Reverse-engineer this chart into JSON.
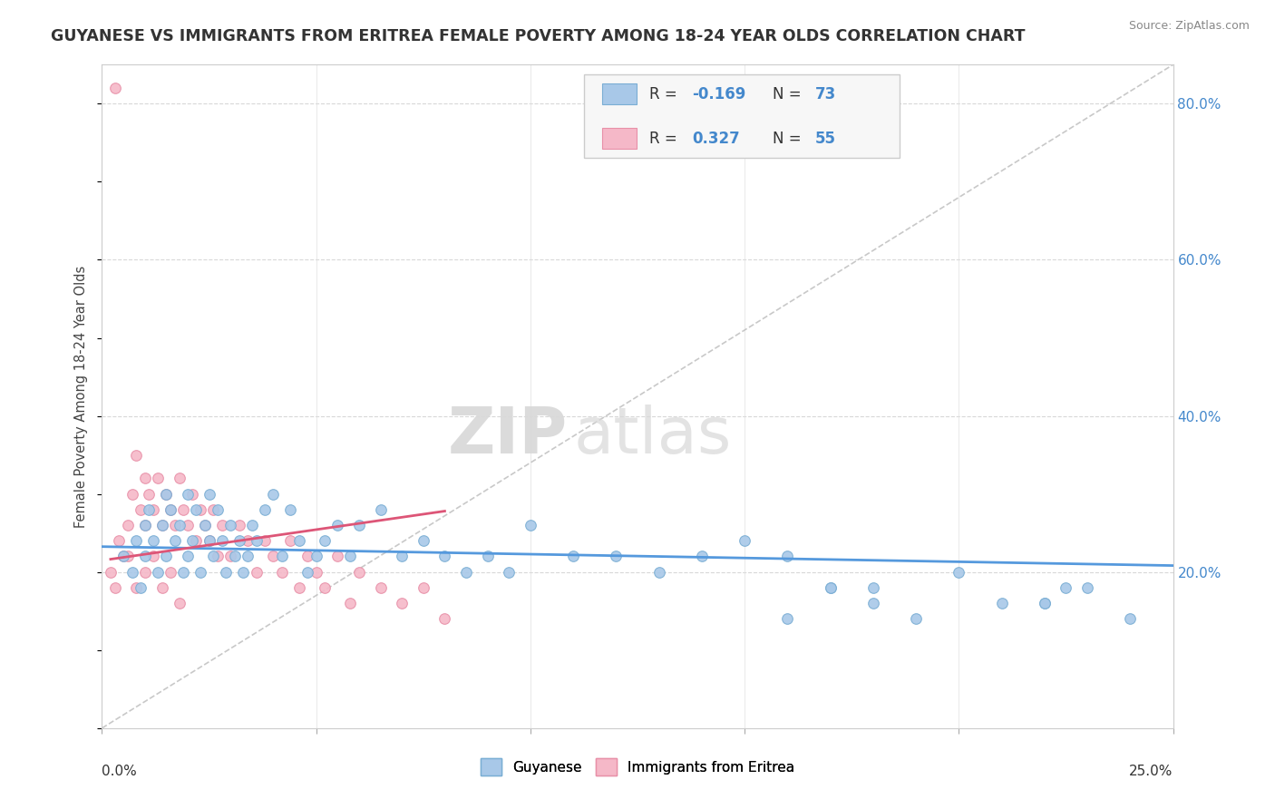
{
  "title": "GUYANESE VS IMMIGRANTS FROM ERITREA FEMALE POVERTY AMONG 18-24 YEAR OLDS CORRELATION CHART",
  "source": "Source: ZipAtlas.com",
  "ylabel": "Female Poverty Among 18-24 Year Olds",
  "xlim": [
    0.0,
    0.25
  ],
  "ylim": [
    0.0,
    0.85
  ],
  "blue_R": -0.169,
  "blue_N": 73,
  "pink_R": 0.327,
  "pink_N": 55,
  "blue_color": "#a8c8e8",
  "pink_color": "#f5b8c8",
  "blue_edge": "#7aaed4",
  "pink_edge": "#e890a8",
  "trend_blue": "#5599dd",
  "trend_pink": "#dd5577",
  "diag_color": "#bbbbbb",
  "legend_label_blue": "Guyanese",
  "legend_label_pink": "Immigrants from Eritrea",
  "watermark_zip": "ZIP",
  "watermark_atlas": "atlas",
  "blue_scatter_x": [
    0.005,
    0.007,
    0.008,
    0.009,
    0.01,
    0.01,
    0.011,
    0.012,
    0.013,
    0.014,
    0.015,
    0.015,
    0.016,
    0.017,
    0.018,
    0.019,
    0.02,
    0.02,
    0.021,
    0.022,
    0.023,
    0.024,
    0.025,
    0.025,
    0.026,
    0.027,
    0.028,
    0.029,
    0.03,
    0.031,
    0.032,
    0.033,
    0.034,
    0.035,
    0.036,
    0.038,
    0.04,
    0.042,
    0.044,
    0.046,
    0.048,
    0.05,
    0.052,
    0.055,
    0.058,
    0.06,
    0.065,
    0.07,
    0.075,
    0.08,
    0.085,
    0.09,
    0.095,
    0.1,
    0.11,
    0.12,
    0.13,
    0.14,
    0.15,
    0.16,
    0.17,
    0.18,
    0.2,
    0.21,
    0.22,
    0.225,
    0.23,
    0.24,
    0.18,
    0.19,
    0.17,
    0.16,
    0.22
  ],
  "blue_scatter_y": [
    0.22,
    0.2,
    0.24,
    0.18,
    0.26,
    0.22,
    0.28,
    0.24,
    0.2,
    0.26,
    0.3,
    0.22,
    0.28,
    0.24,
    0.26,
    0.2,
    0.3,
    0.22,
    0.24,
    0.28,
    0.2,
    0.26,
    0.3,
    0.24,
    0.22,
    0.28,
    0.24,
    0.2,
    0.26,
    0.22,
    0.24,
    0.2,
    0.22,
    0.26,
    0.24,
    0.28,
    0.3,
    0.22,
    0.28,
    0.24,
    0.2,
    0.22,
    0.24,
    0.26,
    0.22,
    0.26,
    0.28,
    0.22,
    0.24,
    0.22,
    0.2,
    0.22,
    0.2,
    0.26,
    0.22,
    0.22,
    0.2,
    0.22,
    0.24,
    0.22,
    0.18,
    0.18,
    0.2,
    0.16,
    0.16,
    0.18,
    0.18,
    0.14,
    0.16,
    0.14,
    0.18,
    0.14,
    0.16
  ],
  "pink_scatter_x": [
    0.003,
    0.005,
    0.006,
    0.007,
    0.008,
    0.009,
    0.01,
    0.01,
    0.011,
    0.012,
    0.013,
    0.014,
    0.015,
    0.016,
    0.017,
    0.018,
    0.019,
    0.02,
    0.021,
    0.022,
    0.023,
    0.024,
    0.025,
    0.026,
    0.027,
    0.028,
    0.03,
    0.032,
    0.034,
    0.036,
    0.038,
    0.04,
    0.042,
    0.044,
    0.046,
    0.048,
    0.05,
    0.052,
    0.055,
    0.058,
    0.06,
    0.065,
    0.07,
    0.075,
    0.08,
    0.002,
    0.004,
    0.006,
    0.008,
    0.01,
    0.012,
    0.014,
    0.016,
    0.018,
    0.003
  ],
  "pink_scatter_y": [
    0.82,
    0.22,
    0.26,
    0.3,
    0.35,
    0.28,
    0.32,
    0.26,
    0.3,
    0.28,
    0.32,
    0.26,
    0.3,
    0.28,
    0.26,
    0.32,
    0.28,
    0.26,
    0.3,
    0.24,
    0.28,
    0.26,
    0.24,
    0.28,
    0.22,
    0.26,
    0.22,
    0.26,
    0.24,
    0.2,
    0.24,
    0.22,
    0.2,
    0.24,
    0.18,
    0.22,
    0.2,
    0.18,
    0.22,
    0.16,
    0.2,
    0.18,
    0.16,
    0.18,
    0.14,
    0.2,
    0.24,
    0.22,
    0.18,
    0.2,
    0.22,
    0.18,
    0.2,
    0.16,
    0.18
  ]
}
